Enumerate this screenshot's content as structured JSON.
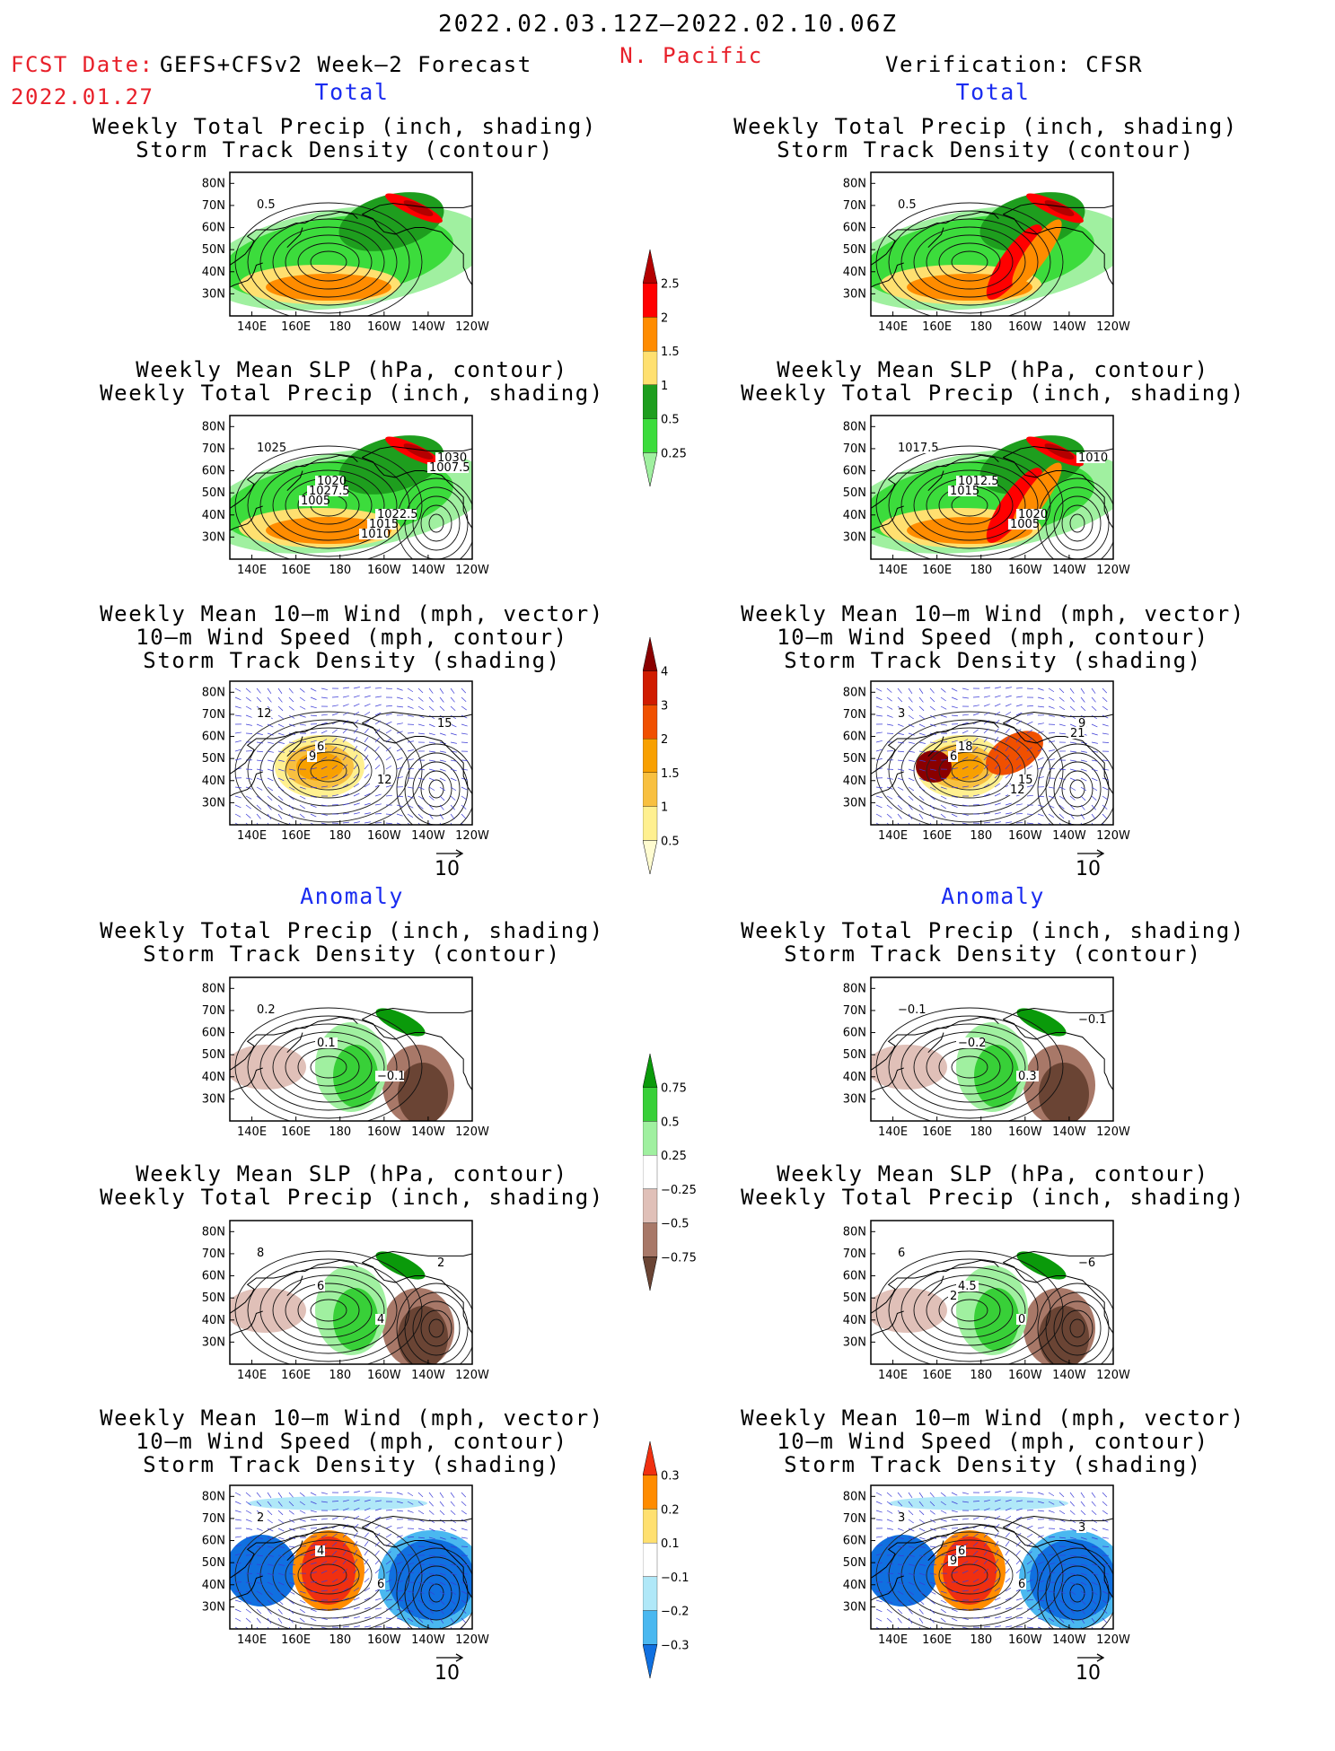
{
  "header": {
    "period": "2022.02.03.12Z—2022.02.10.06Z",
    "region": "N. Pacific",
    "fcst_label": "FCST Date:",
    "model": "GEFS+CFSv2 Week—2 Forecast",
    "fcst_date": "2022.01.27",
    "verification": "Verification: CFSR"
  },
  "sections": {
    "total": "Total",
    "anomaly": "Anomaly"
  },
  "panel_titles": {
    "precip_storm": [
      "Weekly Total Precip (inch, shading)",
      "Storm Track Density (contour)"
    ],
    "slp_precip": [
      "Weekly Mean SLP (hPa, contour)",
      "Weekly Total Precip (inch, shading)"
    ],
    "wind_storm": [
      "Weekly Mean 10—m Wind (mph, vector)",
      "10—m Wind Speed (mph, contour)",
      "Storm Track Density (shading)"
    ]
  },
  "axes": {
    "lat_ticks": [
      "80N",
      "70N",
      "60N",
      "50N",
      "40N",
      "30N"
    ],
    "lon_ticks": [
      "140E",
      "160E",
      "180",
      "160W",
      "140W",
      "120W"
    ]
  },
  "vector_reference": "10",
  "colorbars": {
    "precip_total": {
      "labels": [
        "2.5",
        "2",
        "1.5",
        "1",
        "0.5",
        "0.25"
      ],
      "colors": [
        "#b40000",
        "#ff0000",
        "#ff8c00",
        "#ffe070",
        "#1e9e1e",
        "#3cdc3c",
        "#a0f0a0"
      ]
    },
    "storm_total": {
      "labels": [
        "4",
        "3",
        "2",
        "1.5",
        "1",
        "0.5"
      ],
      "colors": [
        "#8a0000",
        "#d01c00",
        "#f05000",
        "#f8a000",
        "#f8c040",
        "#fff090",
        "#fffcd0"
      ]
    },
    "precip_anom": {
      "labels": [
        "0.75",
        "0.5",
        "0.25",
        "−0.25",
        "−0.5",
        "−0.75"
      ],
      "colors": [
        "#0a9a0a",
        "#38d038",
        "#a0f0a0",
        "#ffffff",
        "#e0c0b8",
        "#a87868",
        "#6a4434"
      ]
    },
    "storm_anom": {
      "labels": [
        "0.3",
        "0.2",
        "0.1",
        "−0.1",
        "−0.2",
        "−0.3"
      ],
      "colors": [
        "#f03010",
        "#ff8c00",
        "#ffe070",
        "#ffffff",
        "#b0e8f8",
        "#4ab8f0",
        "#1070e0"
      ]
    }
  },
  "map_labels": {
    "fc_precip_storm": [
      "0.5"
    ],
    "vf_precip_storm": [
      "0.5"
    ],
    "fc_slp_precip": [
      "1025",
      "1020",
      "1022.5",
      "1030",
      "1027.5",
      "1015",
      "1007.5",
      "1005",
      "1010"
    ],
    "vf_slp_precip": [
      "1017.5",
      "1012.5",
      "1020",
      "1010",
      "1015",
      "1005"
    ],
    "fc_wind_storm": [
      "12",
      "6",
      "12",
      "15",
      "9"
    ],
    "vf_wind_storm": [
      "3",
      "18",
      "15",
      "9",
      "6",
      "12",
      "21"
    ],
    "fc_precip_storm_anom": [
      "0.2",
      "0.1",
      "−0.1"
    ],
    "vf_precip_storm_anom": [
      "−0.1",
      "−0.2",
      "0.3",
      "−0.1"
    ],
    "fc_slp_precip_anom": [
      "8",
      "6",
      "4",
      "2"
    ],
    "vf_slp_precip_anom": [
      "6",
      "4.5",
      "0",
      "−6",
      "2"
    ],
    "fc_wind_storm_anom": [
      "2",
      "4",
      "6"
    ],
    "vf_wind_storm_anom": [
      "3",
      "6",
      "6",
      "3",
      "9"
    ]
  }
}
